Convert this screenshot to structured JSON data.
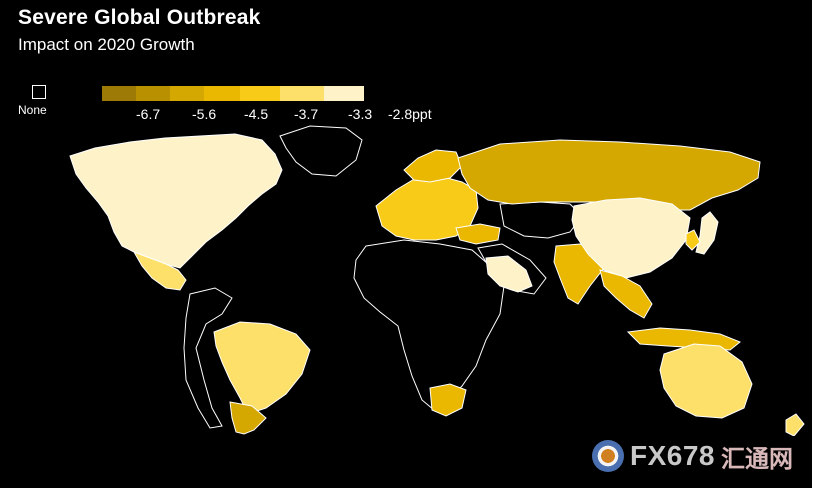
{
  "chart_data": {
    "type": "choropleth",
    "title": "Severe Global Outbreak",
    "subtitle": "Impact on 2020 Growth",
    "unit": "ppt",
    "no_data_label": "None",
    "legend": {
      "colors": [
        "#9c7a05",
        "#b99000",
        "#d4a800",
        "#eab800",
        "#f7cb18",
        "#fde06a",
        "#fdf2c8"
      ],
      "tick_labels": [
        "-6.7",
        "-5.6",
        "-4.5",
        "-3.7",
        "-3.3",
        "-2.8ppt"
      ],
      "breaks": [
        -6.7,
        -5.6,
        -4.5,
        -3.7,
        -3.3,
        -2.8
      ]
    },
    "regions": [
      {
        "name": "North America",
        "bin": 6,
        "shape": "north_america"
      },
      {
        "name": "Mexico",
        "bin": 5,
        "shape": "mexico"
      },
      {
        "name": "Brazil",
        "bin": 5,
        "shape": "brazil"
      },
      {
        "name": "Argentina",
        "bin": 2,
        "shape": "argentina"
      },
      {
        "name": "Western Europe",
        "bin": 4,
        "shape": "west_europe"
      },
      {
        "name": "Nordics",
        "bin": 3,
        "shape": "nordics"
      },
      {
        "name": "Turkey",
        "bin": 3,
        "shape": "turkey"
      },
      {
        "name": "Russia",
        "bin": 2,
        "shape": "russia"
      },
      {
        "name": "Saudi Arabia",
        "bin": 6,
        "shape": "saudi"
      },
      {
        "name": "India",
        "bin": 3,
        "shape": "india"
      },
      {
        "name": "China",
        "bin": 6,
        "shape": "china"
      },
      {
        "name": "Japan",
        "bin": 6,
        "shape": "japan"
      },
      {
        "name": "South Korea",
        "bin": 4,
        "shape": "korea"
      },
      {
        "name": "Southeast Asia",
        "bin": 3,
        "shape": "southeast_asia"
      },
      {
        "name": "Indonesia",
        "bin": 3,
        "shape": "indonesia"
      },
      {
        "name": "South Africa",
        "bin": 3,
        "shape": "south_africa"
      },
      {
        "name": "Australia",
        "bin": 5,
        "shape": "australia"
      },
      {
        "name": "New Zealand",
        "bin": 5,
        "shape": "new_zealand"
      }
    ],
    "no_data_shapes": [
      "greenland",
      "africa",
      "central_asia",
      "south_america_rest",
      "arabia_rest"
    ]
  },
  "watermark": {
    "text": "FX678",
    "cn_text": "汇通网",
    "logo_icon": "fx678-logo-icon"
  }
}
